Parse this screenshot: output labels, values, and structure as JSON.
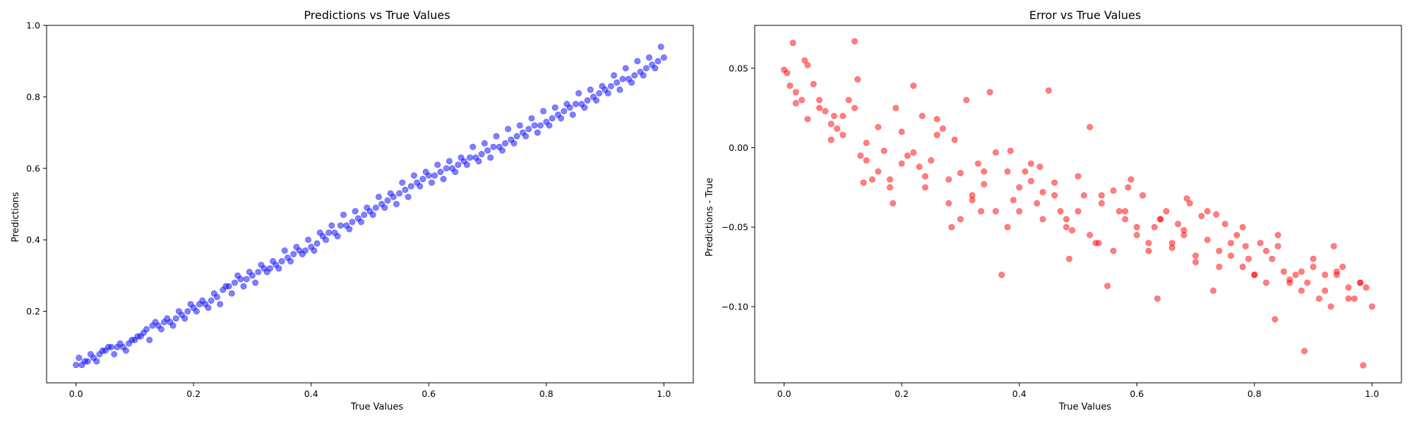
{
  "chart_data": [
    {
      "type": "scatter",
      "title": "Predictions vs True Values",
      "xlabel": "True Values",
      "ylabel": "Predictions",
      "xlim": [
        -0.05,
        1.05
      ],
      "ylim": [
        0.0,
        1.0
      ],
      "xticks": [
        "0.0",
        "0.2",
        "0.4",
        "0.6",
        "0.8",
        "1.0"
      ],
      "yticks": [
        "0.2",
        "0.4",
        "0.6",
        "0.8",
        "1.0"
      ],
      "grid": false,
      "color": "#0000ff",
      "alpha": 0.5,
      "series": [
        {
          "x": [
            0.0,
            0.01,
            0.02,
            0.03,
            0.04,
            0.05,
            0.06,
            0.07,
            0.08,
            0.09,
            0.1,
            0.11,
            0.12,
            0.13,
            0.14,
            0.15,
            0.16,
            0.17,
            0.18,
            0.19,
            0.2,
            0.21,
            0.22,
            0.23,
            0.24,
            0.25,
            0.26,
            0.27,
            0.28,
            0.29,
            0.3,
            0.31,
            0.32,
            0.33,
            0.34,
            0.35,
            0.36,
            0.37,
            0.38,
            0.39,
            0.4,
            0.41,
            0.42,
            0.43,
            0.44,
            0.45,
            0.46,
            0.47,
            0.48,
            0.49,
            0.5,
            0.51,
            0.52,
            0.53,
            0.54,
            0.55,
            0.56,
            0.57,
            0.58,
            0.59,
            0.6,
            0.61,
            0.62,
            0.63,
            0.64,
            0.65,
            0.66,
            0.67,
            0.68,
            0.69,
            0.7,
            0.71,
            0.72,
            0.73,
            0.74,
            0.75,
            0.76,
            0.77,
            0.78,
            0.79,
            0.8,
            0.81,
            0.82,
            0.83,
            0.84,
            0.85,
            0.86,
            0.87,
            0.88,
            0.89,
            0.9,
            0.91,
            0.92,
            0.93,
            0.94,
            0.95,
            0.96,
            0.97,
            0.98,
            0.99,
            1.0,
            0.005,
            0.015,
            0.025,
            0.035,
            0.045,
            0.055,
            0.065,
            0.075,
            0.085,
            0.095,
            0.105,
            0.115,
            0.125,
            0.135,
            0.145,
            0.155,
            0.165,
            0.175,
            0.185,
            0.195,
            0.205,
            0.215,
            0.225,
            0.235,
            0.245,
            0.255,
            0.265,
            0.275,
            0.285,
            0.295,
            0.305,
            0.315,
            0.325,
            0.335,
            0.345,
            0.355,
            0.365,
            0.375,
            0.385,
            0.395,
            0.405,
            0.415,
            0.425,
            0.435,
            0.445,
            0.455,
            0.465,
            0.475,
            0.485,
            0.495,
            0.505,
            0.515,
            0.525,
            0.535,
            0.545,
            0.555,
            0.565,
            0.575,
            0.585,
            0.595,
            0.605,
            0.615,
            0.625,
            0.635,
            0.645,
            0.655,
            0.665,
            0.675,
            0.685,
            0.695,
            0.705,
            0.715,
            0.725,
            0.735,
            0.745,
            0.755,
            0.765,
            0.775,
            0.785,
            0.795,
            0.805,
            0.815,
            0.825,
            0.835,
            0.845,
            0.855,
            0.865,
            0.875,
            0.885,
            0.895,
            0.905,
            0.915,
            0.925,
            0.935,
            0.945,
            0.955,
            0.965,
            0.975,
            0.985,
            0.995
          ],
          "y": [
            0.05,
            0.05,
            0.06,
            0.07,
            0.08,
            0.09,
            0.1,
            0.1,
            0.1,
            0.11,
            0.12,
            0.13,
            0.15,
            0.16,
            0.16,
            0.17,
            0.17,
            0.18,
            0.19,
            0.2,
            0.21,
            0.22,
            0.22,
            0.23,
            0.24,
            0.26,
            0.27,
            0.28,
            0.29,
            0.29,
            0.3,
            0.31,
            0.32,
            0.32,
            0.33,
            0.34,
            0.35,
            0.36,
            0.37,
            0.37,
            0.38,
            0.39,
            0.41,
            0.42,
            0.42,
            0.44,
            0.44,
            0.45,
            0.46,
            0.47,
            0.48,
            0.49,
            0.5,
            0.51,
            0.52,
            0.53,
            0.54,
            0.55,
            0.56,
            0.57,
            0.58,
            0.58,
            0.59,
            0.6,
            0.6,
            0.61,
            0.62,
            0.63,
            0.63,
            0.64,
            0.65,
            0.66,
            0.66,
            0.67,
            0.68,
            0.69,
            0.7,
            0.71,
            0.72,
            0.72,
            0.73,
            0.74,
            0.75,
            0.76,
            0.77,
            0.78,
            0.78,
            0.79,
            0.8,
            0.81,
            0.82,
            0.83,
            0.84,
            0.85,
            0.85,
            0.86,
            0.87,
            0.88,
            0.89,
            0.9,
            0.91,
            0.07,
            0.06,
            0.08,
            0.06,
            0.09,
            0.1,
            0.08,
            0.11,
            0.09,
            0.12,
            0.13,
            0.14,
            0.12,
            0.17,
            0.15,
            0.18,
            0.16,
            0.2,
            0.18,
            0.22,
            0.2,
            0.23,
            0.21,
            0.25,
            0.22,
            0.27,
            0.25,
            0.3,
            0.27,
            0.31,
            0.28,
            0.33,
            0.31,
            0.34,
            0.32,
            0.37,
            0.34,
            0.38,
            0.36,
            0.4,
            0.37,
            0.42,
            0.4,
            0.44,
            0.41,
            0.47,
            0.43,
            0.48,
            0.45,
            0.49,
            0.47,
            0.52,
            0.49,
            0.53,
            0.5,
            0.56,
            0.52,
            0.58,
            0.55,
            0.59,
            0.56,
            0.61,
            0.57,
            0.62,
            0.59,
            0.63,
            0.61,
            0.66,
            0.62,
            0.67,
            0.63,
            0.69,
            0.65,
            0.71,
            0.67,
            0.72,
            0.69,
            0.74,
            0.7,
            0.76,
            0.72,
            0.77,
            0.74,
            0.78,
            0.75,
            0.81,
            0.77,
            0.82,
            0.79,
            0.83,
            0.81,
            0.86,
            0.82,
            0.88,
            0.84,
            0.9,
            0.86,
            0.91,
            0.88,
            0.94
          ]
        }
      ]
    },
    {
      "type": "scatter",
      "title": "Error vs True Values",
      "xlabel": "True Values",
      "ylabel": "Predictions - True",
      "xlim": [
        -0.05,
        1.05
      ],
      "ylim": [
        -0.148,
        0.077
      ],
      "xticks": [
        "0.0",
        "0.2",
        "0.4",
        "0.6",
        "0.8",
        "1.0"
      ],
      "yticks": [
        "0.05",
        "0.00",
        "−0.05",
        "−0.10"
      ],
      "grid": false,
      "color": "#ff0000",
      "alpha": 0.5,
      "series": [
        {
          "x": [
            0.0,
            0.005,
            0.01,
            0.015,
            0.02,
            0.03,
            0.04,
            0.05,
            0.06,
            0.07,
            0.08,
            0.09,
            0.1,
            0.11,
            0.12,
            0.125,
            0.13,
            0.14,
            0.15,
            0.16,
            0.17,
            0.18,
            0.19,
            0.2,
            0.21,
            0.22,
            0.23,
            0.24,
            0.25,
            0.26,
            0.27,
            0.28,
            0.29,
            0.3,
            0.31,
            0.32,
            0.33,
            0.34,
            0.35,
            0.36,
            0.37,
            0.38,
            0.39,
            0.4,
            0.41,
            0.42,
            0.43,
            0.44,
            0.45,
            0.46,
            0.47,
            0.48,
            0.49,
            0.5,
            0.51,
            0.52,
            0.53,
            0.54,
            0.55,
            0.56,
            0.57,
            0.58,
            0.59,
            0.6,
            0.61,
            0.62,
            0.63,
            0.64,
            0.65,
            0.66,
            0.67,
            0.68,
            0.69,
            0.7,
            0.71,
            0.72,
            0.73,
            0.74,
            0.75,
            0.76,
            0.77,
            0.78,
            0.79,
            0.8,
            0.81,
            0.82,
            0.83,
            0.84,
            0.85,
            0.86,
            0.87,
            0.88,
            0.89,
            0.9,
            0.91,
            0.92,
            0.93,
            0.94,
            0.95,
            0.96,
            0.97,
            0.98,
            0.99,
            1.0,
            0.02,
            0.04,
            0.06,
            0.08,
            0.1,
            0.12,
            0.14,
            0.16,
            0.18,
            0.2,
            0.22,
            0.24,
            0.26,
            0.28,
            0.3,
            0.32,
            0.34,
            0.36,
            0.38,
            0.4,
            0.42,
            0.44,
            0.46,
            0.48,
            0.5,
            0.52,
            0.54,
            0.56,
            0.58,
            0.6,
            0.62,
            0.64,
            0.66,
            0.68,
            0.7,
            0.72,
            0.74,
            0.76,
            0.78,
            0.8,
            0.82,
            0.84,
            0.86,
            0.88,
            0.9,
            0.92,
            0.94,
            0.96,
            0.98,
            0.035,
            0.085,
            0.135,
            0.185,
            0.235,
            0.285,
            0.335,
            0.385,
            0.435,
            0.485,
            0.535,
            0.585,
            0.635,
            0.685,
            0.735,
            0.785,
            0.835,
            0.885,
            0.935,
            0.985
          ],
          "y": [
            0.049,
            0.047,
            0.039,
            0.066,
            0.035,
            0.03,
            0.052,
            0.04,
            0.025,
            0.023,
            0.015,
            0.012,
            0.008,
            0.03,
            0.067,
            0.043,
            -0.005,
            0.003,
            -0.02,
            0.013,
            -0.002,
            -0.025,
            0.025,
            0.01,
            -0.005,
            0.039,
            -0.012,
            -0.018,
            -0.008,
            0.008,
            0.012,
            -0.02,
            0.005,
            -0.016,
            0.03,
            -0.033,
            -0.01,
            -0.023,
            0.035,
            -0.003,
            -0.08,
            -0.015,
            -0.033,
            -0.04,
            -0.015,
            -0.021,
            -0.035,
            -0.028,
            0.036,
            -0.022,
            -0.04,
            -0.045,
            -0.052,
            -0.018,
            -0.03,
            0.013,
            -0.06,
            -0.035,
            -0.087,
            -0.027,
            -0.04,
            -0.045,
            -0.02,
            -0.055,
            -0.03,
            -0.065,
            -0.05,
            -0.045,
            -0.04,
            -0.063,
            -0.048,
            -0.055,
            -0.035,
            -0.072,
            -0.043,
            -0.058,
            -0.09,
            -0.065,
            -0.048,
            -0.068,
            -0.055,
            -0.075,
            -0.07,
            -0.08,
            -0.06,
            -0.085,
            -0.07,
            -0.062,
            -0.078,
            -0.083,
            -0.08,
            -0.09,
            -0.085,
            -0.075,
            -0.095,
            -0.08,
            -0.1,
            -0.078,
            -0.075,
            -0.088,
            -0.095,
            -0.085,
            -0.088,
            -0.1,
            0.028,
            0.018,
            0.03,
            0.005,
            0.02,
            0.025,
            -0.008,
            -0.015,
            -0.02,
            -0.01,
            -0.003,
            -0.025,
            0.018,
            -0.035,
            -0.045,
            -0.03,
            -0.015,
            -0.04,
            -0.05,
            -0.025,
            -0.01,
            -0.045,
            -0.03,
            -0.05,
            -0.04,
            -0.055,
            -0.03,
            -0.065,
            -0.04,
            -0.05,
            -0.06,
            -0.045,
            -0.06,
            -0.052,
            -0.068,
            -0.04,
            -0.075,
            -0.06,
            -0.05,
            -0.08,
            -0.065,
            -0.055,
            -0.085,
            -0.078,
            -0.07,
            -0.09,
            -0.08,
            -0.095,
            -0.085,
            0.055,
            0.02,
            -0.022,
            -0.035,
            0.02,
            -0.05,
            -0.04,
            -0.002,
            -0.012,
            -0.07,
            -0.06,
            -0.025,
            -0.095,
            -0.032,
            -0.042,
            -0.062,
            -0.108,
            -0.128,
            -0.062,
            -0.137
          ]
        }
      ]
    }
  ]
}
